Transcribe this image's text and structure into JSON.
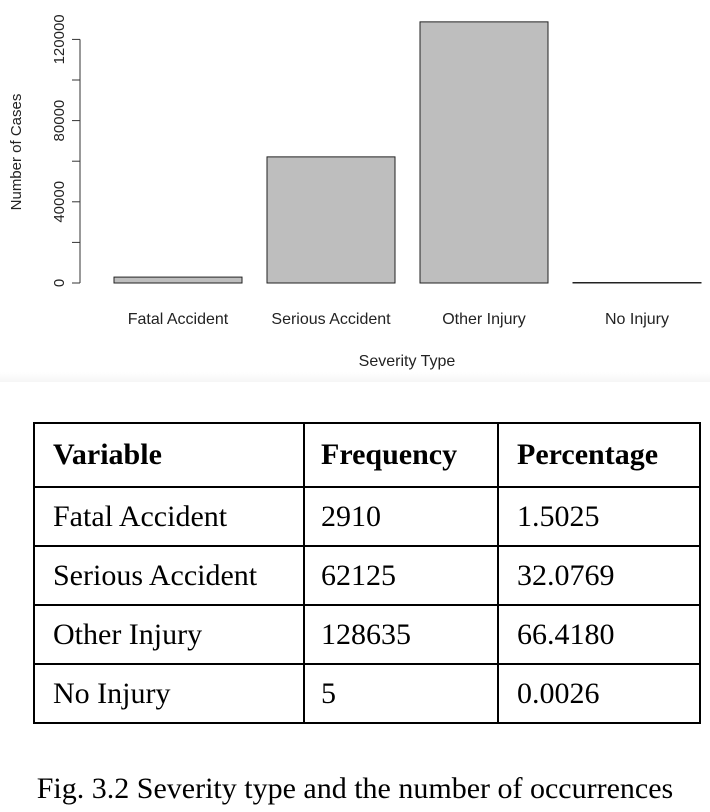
{
  "chart_data": {
    "type": "bar",
    "categories": [
      "Fatal Accident",
      "Serious Accident",
      "Other Injury",
      "No Injury"
    ],
    "values": [
      2910,
      62125,
      128635,
      5
    ],
    "xlabel": "Severity Type",
    "ylabel": "Number of Cases",
    "ylim": [
      0,
      130000
    ],
    "yticks": [
      0,
      40000,
      80000,
      120000
    ],
    "ytick_labels": [
      "0",
      "40000",
      "80000",
      "120000"
    ],
    "bar_color": "#bebebe",
    "grid": false
  },
  "table": {
    "headers": [
      "Variable",
      "Frequency",
      "Percentage"
    ],
    "rows": [
      [
        "Fatal Accident",
        "2910",
        "1.5025"
      ],
      [
        "Serious Accident",
        "62125",
        "32.0769"
      ],
      [
        "Other Injury",
        "128635",
        "66.4180"
      ],
      [
        "No Injury",
        "5",
        "0.0026"
      ]
    ]
  },
  "caption": "Fig. 3.2 Severity type and the number of occurrences"
}
